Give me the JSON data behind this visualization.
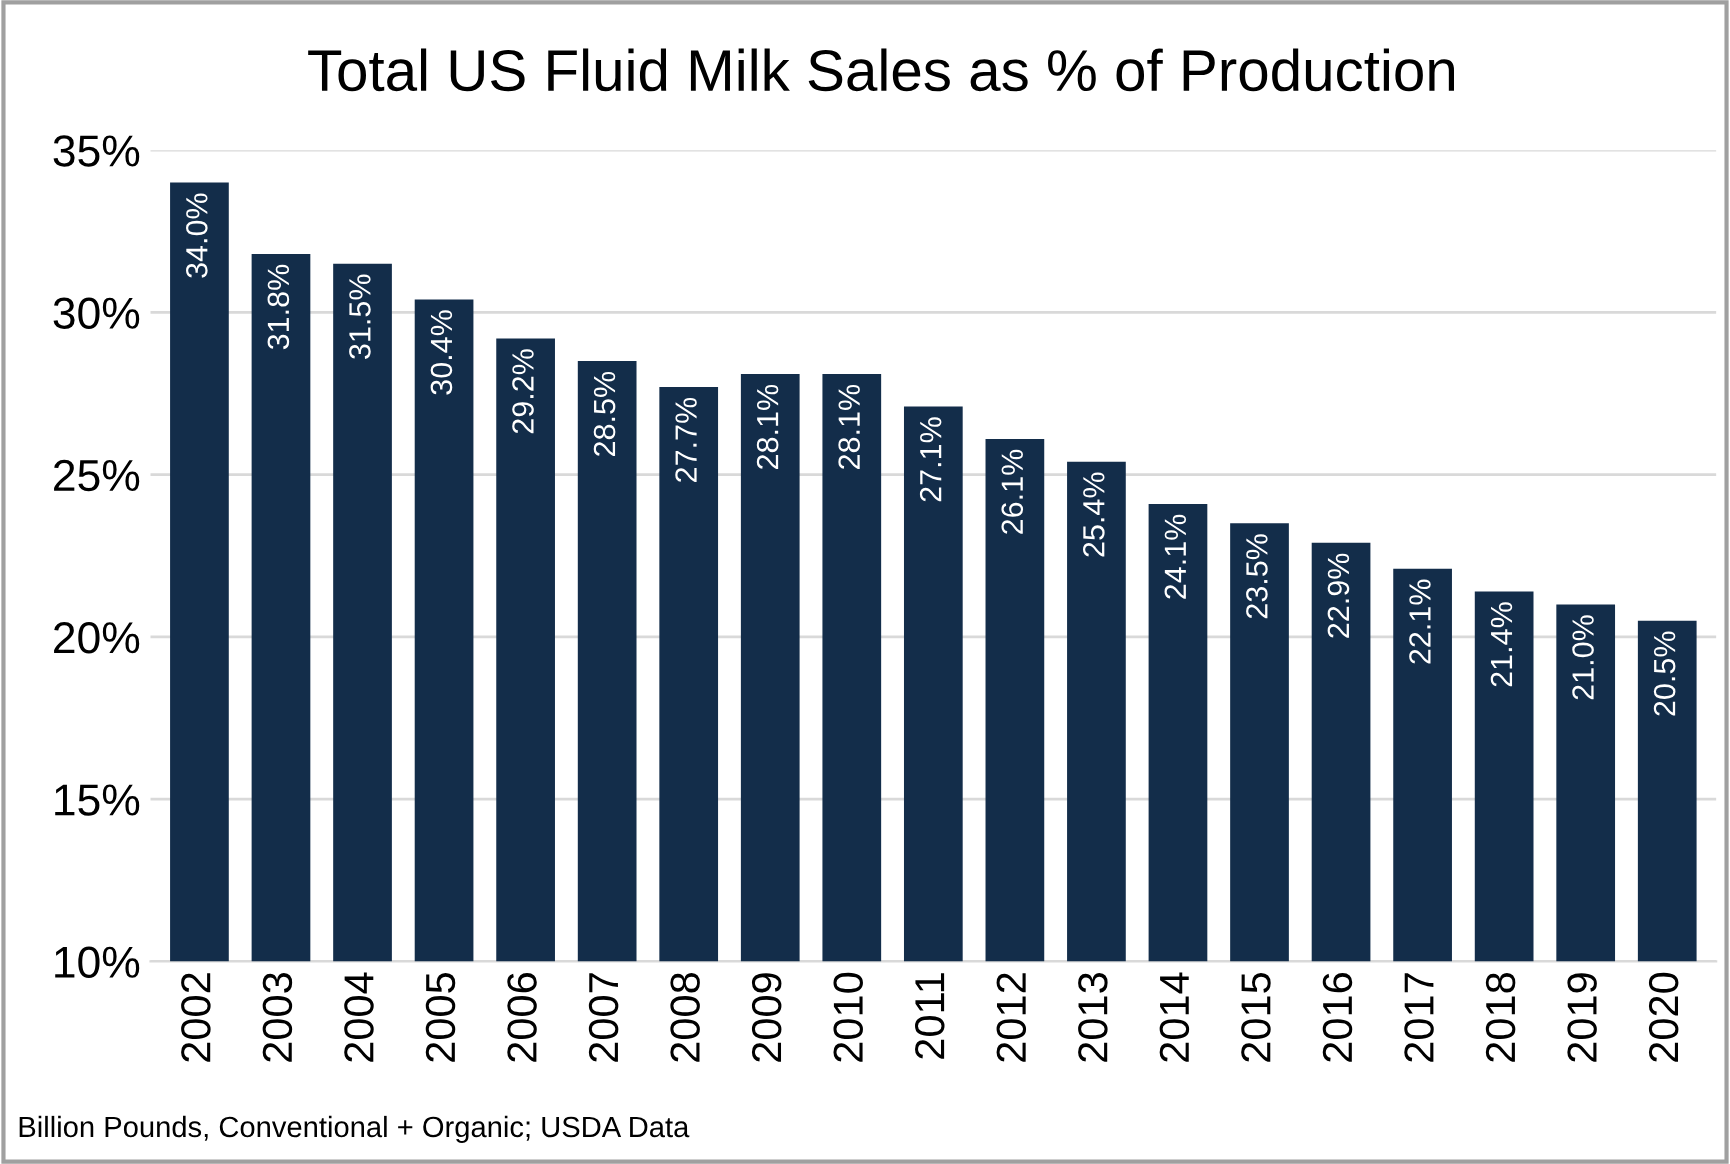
{
  "chart_data": {
    "type": "bar",
    "title": "Total US Fluid Milk Sales as % of Production",
    "categories": [
      "2002",
      "2003",
      "2004",
      "2005",
      "2006",
      "2007",
      "2008",
      "2009",
      "2010",
      "2011",
      "2012",
      "2013",
      "2014",
      "2015",
      "2016",
      "2017",
      "2018",
      "2019",
      "2020"
    ],
    "values": [
      34.0,
      31.8,
      31.5,
      30.4,
      29.2,
      28.5,
      27.7,
      28.1,
      28.1,
      27.1,
      26.1,
      25.4,
      24.1,
      23.5,
      22.9,
      22.1,
      21.4,
      21.0,
      20.5
    ],
    "value_labels": [
      "34.0%",
      "31.8%",
      "31.5%",
      "30.4%",
      "29.2%",
      "28.5%",
      "27.7%",
      "28.1%",
      "28.1%",
      "27.1%",
      "26.1%",
      "25.4%",
      "24.1%",
      "23.5%",
      "22.9%",
      "22.1%",
      "21.4%",
      "21.0%",
      "20.5%"
    ],
    "color": "#132d4a",
    "ylim": [
      10,
      35
    ],
    "yticks": [
      {
        "value": 10,
        "label": "10%"
      },
      {
        "value": 15,
        "label": "15%"
      },
      {
        "value": 20,
        "label": "20%"
      },
      {
        "value": 25,
        "label": "25%"
      },
      {
        "value": 30,
        "label": "30%"
      },
      {
        "value": 35,
        "label": "35%"
      }
    ],
    "grid": "y",
    "annotations": [
      "Billion Pounds, Conventional + Organic; USDA Data"
    ]
  }
}
